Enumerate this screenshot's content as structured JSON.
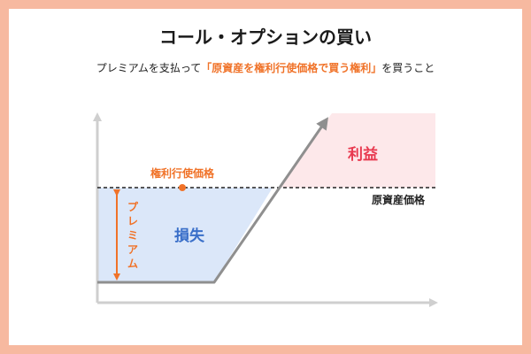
{
  "title": "コール・オプションの買い",
  "subtitle": {
    "before": "プレミアムを支払って",
    "highlight": "「原資産を権利行使価格で買う権利」",
    "after": "を買うこと"
  },
  "labels": {
    "strike_price": "権利行使価格",
    "underlying_price": "原資産価格",
    "premium": [
      "プ",
      "レ",
      "ミ",
      "ア",
      "ム"
    ],
    "loss": "損失",
    "profit": "利益"
  },
  "colors": {
    "border": "#f7b9a0",
    "accent": "#f07228",
    "loss_fill": "#dbe7f9",
    "loss_text": "#3a6fc9",
    "profit_fill": "#fde8ea",
    "profit_text": "#e8394f",
    "axis": "#cfcfcf",
    "payoff_line": "#8f8f8f"
  }
}
